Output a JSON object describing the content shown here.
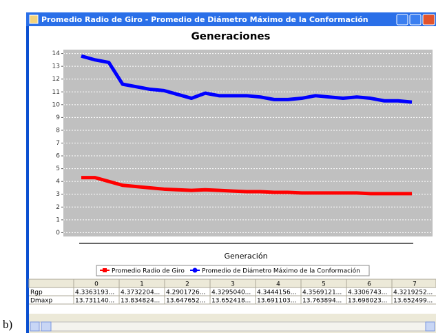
{
  "caption": "b)",
  "window": {
    "title": "Promedio Radio de Giro - Promedio de Diámetro Máximo de la Conformación"
  },
  "chart_data": {
    "type": "line",
    "title": "Generaciones",
    "xlabel": "Generación",
    "ylim": [
      -0.3,
      14.3
    ],
    "yticks": [
      0,
      1,
      2,
      3,
      4,
      5,
      6,
      7,
      8,
      9,
      10,
      11,
      12,
      13,
      14
    ],
    "grid": true,
    "series": [
      {
        "name": "Promedio Radio de Giro",
        "color": "#ff0000",
        "marker": "square",
        "values": [
          4.3,
          4.3,
          4.0,
          3.7,
          3.6,
          3.5,
          3.4,
          3.35,
          3.3,
          3.35,
          3.3,
          3.25,
          3.2,
          3.2,
          3.15,
          3.15,
          3.1,
          3.1,
          3.1,
          3.1,
          3.1,
          3.05,
          3.05,
          3.05,
          3.05
        ]
      },
      {
        "name": "Promedio de Diámetro Máximo de la Conformación",
        "color": "#0000ff",
        "marker": "circle",
        "values": [
          13.8,
          13.5,
          13.3,
          11.6,
          11.4,
          11.2,
          11.1,
          10.8,
          10.5,
          10.9,
          10.7,
          10.7,
          10.7,
          10.6,
          10.4,
          10.4,
          10.5,
          10.7,
          10.6,
          10.5,
          10.6,
          10.5,
          10.3,
          10.3,
          10.2
        ]
      }
    ]
  },
  "table": {
    "columns": [
      "0",
      "1",
      "2",
      "3",
      "4",
      "5",
      "6",
      "7"
    ],
    "rows": [
      {
        "name": "Rgp",
        "cells": [
          "4.3363193...",
          "4.3732204...",
          "4.2901726...",
          "4.3295040...",
          "4.3444156...",
          "4.3569121...",
          "4.3306743...",
          "4.3219252..."
        ]
      },
      {
        "name": "Dmaxp",
        "cells": [
          "13.731140...",
          "13.834824...",
          "13.647652...",
          "13.652418...",
          "13.691103...",
          "13.763894...",
          "13.698023...",
          "13.652499..."
        ]
      }
    ]
  }
}
